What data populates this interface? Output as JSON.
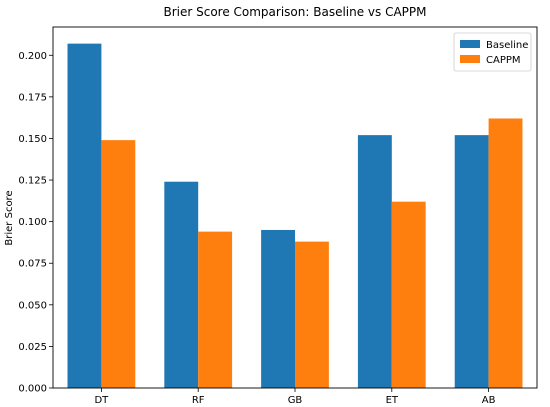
{
  "chart_data": {
    "type": "bar",
    "title": "Brier Score Comparison: Baseline vs CAPPM",
    "xlabel": "",
    "ylabel": "Brier Score",
    "categories": [
      "DT",
      "RF",
      "GB",
      "ET",
      "AB"
    ],
    "series": [
      {
        "name": "Baseline",
        "color": "#1f77b4",
        "values": [
          0.207,
          0.124,
          0.095,
          0.152,
          0.152
        ]
      },
      {
        "name": "CAPPM",
        "color": "#ff7f0e",
        "values": [
          0.149,
          0.094,
          0.088,
          0.112,
          0.162
        ]
      }
    ],
    "ylim": [
      0,
      0.217
    ],
    "yticks": [
      "0.000",
      "0.025",
      "0.050",
      "0.075",
      "0.100",
      "0.125",
      "0.150",
      "0.175",
      "0.200"
    ],
    "grid": false,
    "legend_position": "top-right"
  }
}
